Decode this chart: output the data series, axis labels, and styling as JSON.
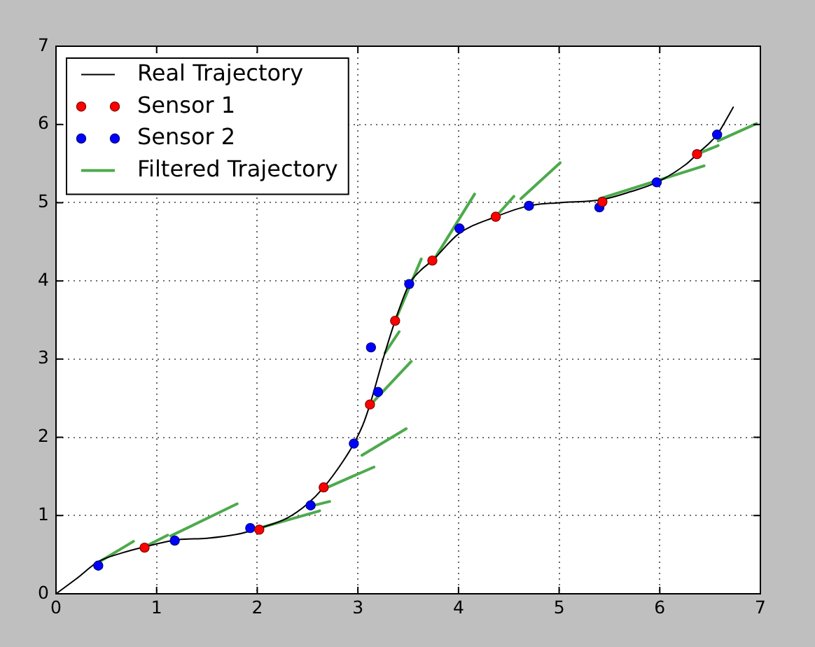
{
  "chart_data": {
    "type": "line",
    "xlim": [
      0,
      7
    ],
    "ylim": [
      0,
      7
    ],
    "xticks": [
      0,
      1,
      2,
      3,
      4,
      5,
      6,
      7
    ],
    "yticks": [
      0,
      1,
      2,
      3,
      4,
      5,
      6,
      7
    ],
    "grid": true,
    "legend": "top left",
    "series": [
      {
        "name": "Real Trajectory",
        "color": "#000000",
        "marker": "none",
        "x": [
          0,
          0.2,
          0.42,
          0.65,
          0.88,
          1.2,
          1.5,
          1.8,
          2.0,
          2.3,
          2.5,
          2.66,
          2.85,
          2.96,
          3.05,
          3.12,
          3.25,
          3.37,
          3.51,
          3.62,
          3.74,
          4.0,
          4.37,
          4.7,
          5.0,
          5.43,
          5.71,
          5.97,
          6.26,
          6.37,
          6.57,
          6.73
        ],
        "values": [
          0,
          0.19,
          0.41,
          0.52,
          0.6,
          0.69,
          0.71,
          0.76,
          0.83,
          0.97,
          1.15,
          1.36,
          1.69,
          1.92,
          2.16,
          2.42,
          3.0,
          3.49,
          3.96,
          4.13,
          4.26,
          4.6,
          4.82,
          4.96,
          5.0,
          5.04,
          5.14,
          5.26,
          5.49,
          5.62,
          5.87,
          6.22
        ]
      },
      {
        "name": "Sensor 1",
        "type": "scatter",
        "color": "#ff0000",
        "marker": "circle",
        "x": [
          0.88,
          2.02,
          2.66,
          3.12,
          3.37,
          3.74,
          4.37,
          5.43,
          6.37
        ],
        "values": [
          0.59,
          0.82,
          1.36,
          2.42,
          3.49,
          4.26,
          4.82,
          5.01,
          5.62
        ]
      },
      {
        "name": "Sensor 2",
        "type": "scatter",
        "color": "#0000ff",
        "marker": "circle",
        "x": [
          0.42,
          1.18,
          1.93,
          2.53,
          2.96,
          3.13,
          3.2,
          3.51,
          4.01,
          4.7,
          5.4,
          5.97,
          6.57
        ],
        "values": [
          0.36,
          0.68,
          0.84,
          1.13,
          1.92,
          3.15,
          2.58,
          3.96,
          4.67,
          4.96,
          4.94,
          5.26,
          5.87
        ]
      },
      {
        "name": "Filtered Trajectory",
        "color": "#4daa4d",
        "marker": "none",
        "x": [
          0.42,
          0.77,
          null,
          0.88,
          1.11,
          null,
          1.14,
          1.8,
          null,
          2.02,
          2.62,
          null,
          2.53,
          2.72,
          null,
          2.66,
          3.16,
          null,
          3.04,
          3.48,
          null,
          3.12,
          3.53,
          null,
          3.27,
          3.41,
          null,
          3.37,
          3.63,
          null,
          3.75,
          4.16,
          null,
          4.37,
          4.55,
          null,
          4.62,
          5.01,
          null,
          5.4,
          6.44,
          null,
          6.37,
          6.58,
          null,
          6.58,
          6.96
        ],
        "values": [
          0.4,
          0.67,
          null,
          0.6,
          0.75,
          null,
          0.74,
          1.15,
          null,
          0.84,
          1.06,
          null,
          1.12,
          1.18,
          null,
          1.34,
          1.62,
          null,
          1.77,
          2.11,
          null,
          2.41,
          2.97,
          null,
          3.08,
          3.35,
          null,
          3.49,
          4.28,
          null,
          4.26,
          5.11,
          null,
          4.82,
          5.08,
          null,
          5.05,
          5.51,
          null,
          5.05,
          5.47,
          null,
          5.62,
          5.73,
          null,
          5.79,
          6.01
        ]
      }
    ]
  }
}
